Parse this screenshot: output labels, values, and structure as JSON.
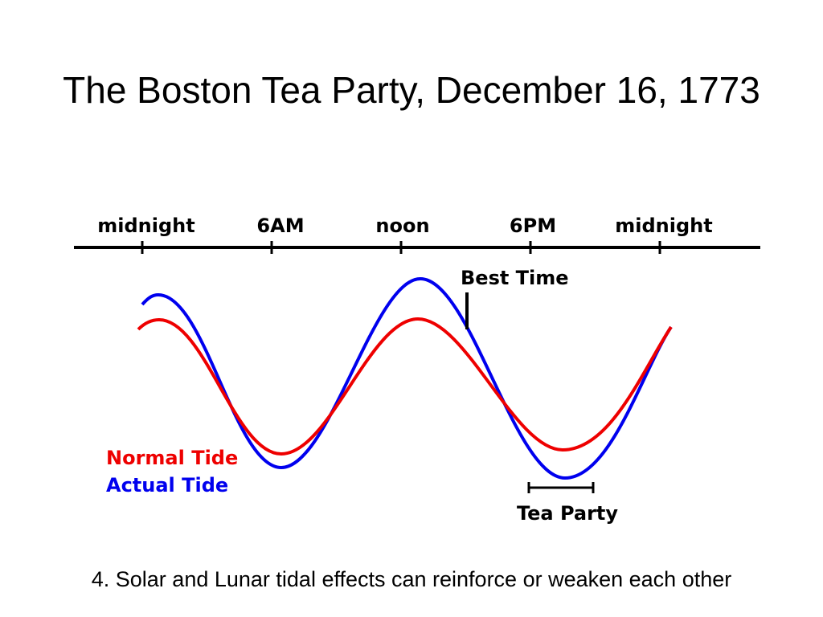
{
  "title": "The Boston Tea Party, December 16, 1773",
  "diagram": {
    "time_labels": [
      "midnight",
      "6AM",
      "noon",
      "6PM",
      "midnight"
    ],
    "best_time": "Best Time",
    "tea_party": "Tea Party",
    "legend": [
      "Normal Tide",
      "Actual Tide"
    ]
  },
  "caption": "4. Solar and Lunar tidal effects can reinforce or weaken each other"
}
